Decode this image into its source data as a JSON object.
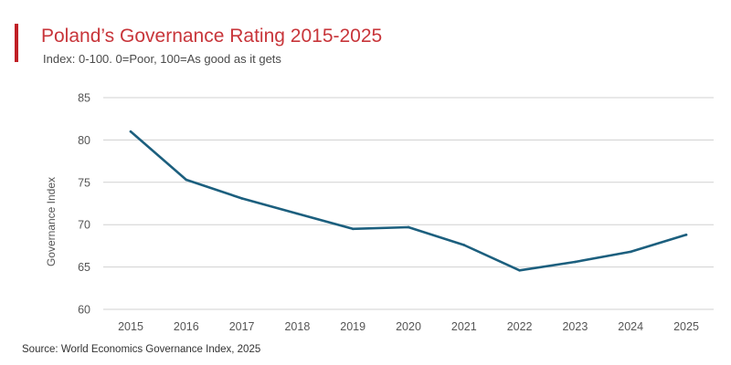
{
  "header": {
    "title": "Poland’s Governance Rating 2015-2025",
    "subtitle": "Index: 0-100. 0=Poor, 100=As good as it gets"
  },
  "footer": {
    "source": "Source: World Economics Governance Index, 2025"
  },
  "colors": {
    "accent": "#c01f25",
    "title": "#c8353a",
    "line": "#1c5f7e",
    "grid": "#d0d0d0",
    "axis_text": "#555555"
  },
  "chart_data": {
    "type": "line",
    "title": "Poland’s Governance Rating 2015-2025",
    "subtitle": "Index: 0-100. 0=Poor, 100=As good as it gets",
    "xlabel": "",
    "ylabel": "Governance Index",
    "ylim": [
      60,
      85
    ],
    "yticks": [
      60,
      65,
      70,
      75,
      80,
      85
    ],
    "grid": true,
    "legend": "none",
    "x": [
      "2015",
      "2016",
      "2017",
      "2018",
      "2019",
      "2020",
      "2021",
      "2022",
      "2023",
      "2024",
      "2025"
    ],
    "series": [
      {
        "name": "Governance Index",
        "values": [
          81.0,
          75.3,
          73.1,
          71.3,
          69.5,
          69.7,
          67.6,
          64.6,
          65.6,
          66.8,
          68.8
        ]
      }
    ]
  }
}
